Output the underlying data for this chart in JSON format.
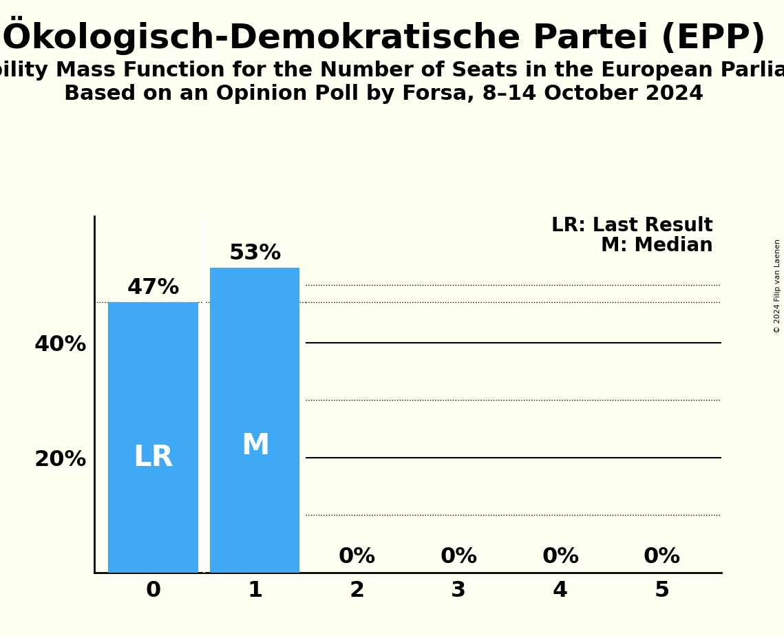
{
  "title": "Ökologisch-Demokratische Partei (EPP)",
  "subtitle1": "Probability Mass Function for the Number of Seats in the European Parliament",
  "subtitle2": "Based on an Opinion Poll by Forsa, 8–14 October 2024",
  "copyright": "© 2024 Filip van Laenen",
  "categories": [
    0,
    1,
    2,
    3,
    4,
    5
  ],
  "values": [
    0.47,
    0.53,
    0.0,
    0.0,
    0.0,
    0.0
  ],
  "bar_color": "#3fa9f5",
  "background_color": "#fffff2",
  "lr_bar_index": 0,
  "median_bar_index": 1,
  "label_lr": "LR",
  "label_m": "M",
  "label_lr_text": "LR: Last Result",
  "label_m_text": "M: Median",
  "ylim_max": 0.62,
  "solid_hlines": [
    0.2,
    0.4
  ],
  "dotted_hlines": [
    0.1,
    0.3,
    0.47,
    0.5
  ],
  "ytick_positions": [
    0.2,
    0.4
  ],
  "ytick_labels": [
    "20%",
    "40%"
  ],
  "bar_label_fontsize": 23,
  "inner_label_fontsize": 30,
  "axis_tick_fontsize": 23,
  "title_fontsize": 36,
  "subtitle_fontsize": 22,
  "legend_fontsize": 20,
  "copyright_fontsize": 8,
  "bar_width": 0.88
}
